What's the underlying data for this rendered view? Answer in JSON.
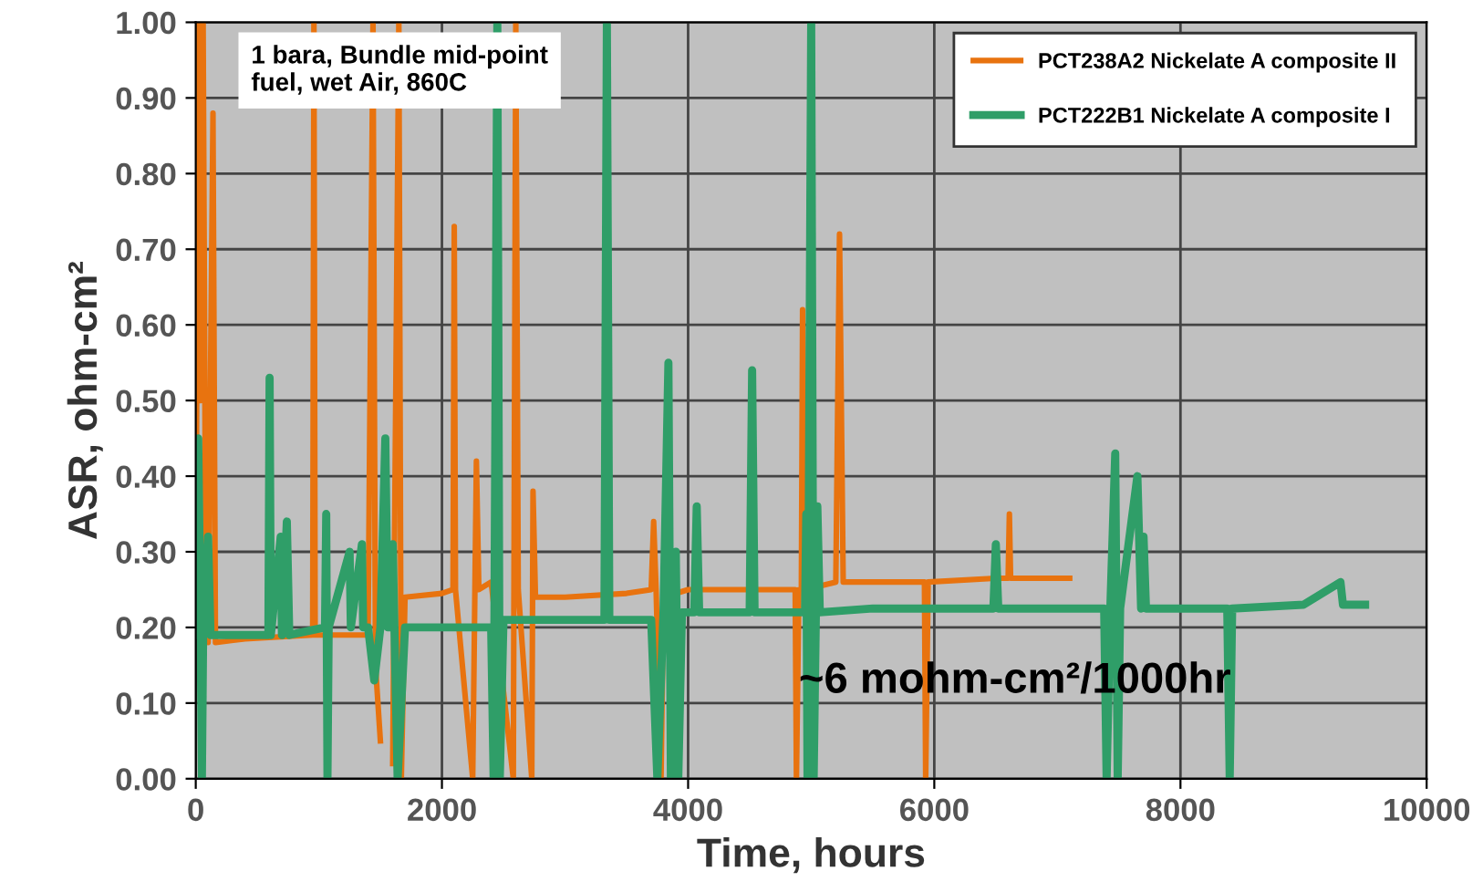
{
  "chart_data": {
    "type": "line",
    "xlabel": "Time, hours",
    "ylabel": "ASR, ohm-cm²",
    "annotations": [
      "1 bara, Bundle mid-point\nfuel, wet Air, 860C",
      "~6 mohm-cm²/1000hr"
    ],
    "xlim": [
      0,
      10000
    ],
    "xticks": [
      0,
      2000,
      4000,
      6000,
      8000,
      10000
    ],
    "ylim": [
      0,
      1.0
    ],
    "yticks": [
      {
        "value": 0,
        "label": "0.00"
      },
      {
        "value": 0.1,
        "label": "0.10"
      },
      {
        "value": 0.2,
        "label": "0.20"
      },
      {
        "value": 0.3,
        "label": "0.30"
      },
      {
        "value": 0.4,
        "label": "0.40"
      },
      {
        "value": 0.5,
        "label": "0.50"
      },
      {
        "value": 0.6,
        "label": "0.60"
      },
      {
        "value": 0.7,
        "label": "0.70"
      },
      {
        "value": 0.8,
        "label": "0.80"
      },
      {
        "value": 0.9,
        "label": "0.90"
      },
      {
        "value": 1.0,
        "label": "1.00"
      }
    ],
    "grid": true,
    "legend": "top right",
    "marker": "none",
    "line_style": "solid",
    "series": [
      {
        "name": "PCT238A2 Nickelate A composite II",
        "color": "#e8730f",
        "x": [
          0,
          20,
          40,
          60,
          80,
          100,
          140,
          160,
          400,
          950,
          960,
          970,
          1400,
          1440,
          1460,
          1500,
          1550,
          1600,
          1650,
          1670,
          1700,
          2000,
          2090,
          2100,
          2110,
          2250,
          2280,
          2300,
          2400,
          2580,
          2600,
          2620,
          2730,
          2740,
          2760,
          3000,
          3500,
          3700,
          3720,
          3740,
          3780,
          3800,
          4000,
          4500,
          4870,
          4880,
          4900,
          4920,
          4930,
          4950,
          5200,
          5230,
          5260,
          5500,
          5920,
          5930,
          5950,
          6500,
          6600,
          6610,
          6620,
          7100
        ],
        "values": [
          0.2,
          1.0,
          0.5,
          1.0,
          0.3,
          0.18,
          0.88,
          0.18,
          0.185,
          0.19,
          1.0,
          0.19,
          0.19,
          1.0,
          0.15,
          0.05,
          null,
          0.02,
          1.0,
          0.0,
          0.24,
          0.245,
          0.25,
          0.73,
          0.25,
          0.0,
          0.42,
          0.25,
          0.26,
          0.0,
          1.0,
          0.25,
          0.0,
          0.38,
          0.24,
          0.24,
          0.245,
          0.25,
          0.34,
          0.25,
          0.0,
          0.24,
          0.25,
          0.25,
          0.25,
          0.0,
          0.25,
          0.25,
          0.62,
          0.25,
          0.26,
          0.72,
          0.26,
          0.26,
          0.26,
          0.0,
          0.26,
          0.265,
          0.265,
          0.35,
          0.265,
          0.265
        ]
      },
      {
        "name": "PCT222B1 Nickelate A composite I",
        "color": "#2f9e68",
        "x": [
          0,
          20,
          40,
          50,
          60,
          100,
          120,
          400,
          590,
          600,
          610,
          690,
          700,
          740,
          760,
          1050,
          1060,
          1070,
          1080,
          1250,
          1260,
          1350,
          1360,
          1400,
          1450,
          1500,
          1540,
          1560,
          1580,
          1600,
          1640,
          1700,
          2400,
          2420,
          2450,
          2470,
          2500,
          3000,
          3320,
          3340,
          3360,
          3700,
          3750,
          3800,
          3840,
          3860,
          3900,
          3920,
          3950,
          4050,
          4070,
          4090,
          4500,
          4520,
          4540,
          4950,
          4960,
          4970,
          5000,
          5020,
          5050,
          5070,
          5500,
          6000,
          6480,
          6500,
          6520,
          7000,
          7380,
          7400,
          7430,
          7470,
          7490,
          7510,
          7650,
          7680,
          7700,
          7720,
          8000,
          8380,
          8400,
          8420,
          9000,
          9300,
          9320,
          9500
        ],
        "values": [
          0.19,
          0.45,
          0.19,
          0.0,
          0.19,
          0.32,
          0.19,
          0.19,
          0.19,
          0.53,
          0.19,
          0.32,
          0.19,
          0.34,
          0.19,
          0.2,
          0.35,
          0.0,
          0.2,
          0.3,
          0.2,
          0.31,
          0.2,
          0.2,
          0.13,
          0.2,
          0.45,
          0.2,
          0.2,
          0.31,
          0.0,
          0.2,
          0.2,
          0.0,
          1.0,
          0.0,
          0.21,
          0.21,
          0.21,
          1.0,
          0.21,
          0.21,
          0.0,
          0.22,
          0.55,
          0.0,
          0.3,
          0.0,
          0.22,
          0.22,
          0.36,
          0.22,
          0.22,
          0.54,
          0.22,
          0.22,
          0.35,
          0.0,
          1.0,
          0.0,
          0.36,
          0.22,
          0.225,
          0.225,
          0.225,
          0.31,
          0.225,
          0.225,
          0.225,
          0.0,
          0.225,
          0.43,
          0.0,
          0.225,
          0.4,
          0.225,
          0.32,
          0.225,
          0.225,
          0.225,
          0.0,
          0.225,
          0.23,
          0.26,
          0.23,
          0.23
        ]
      }
    ]
  }
}
